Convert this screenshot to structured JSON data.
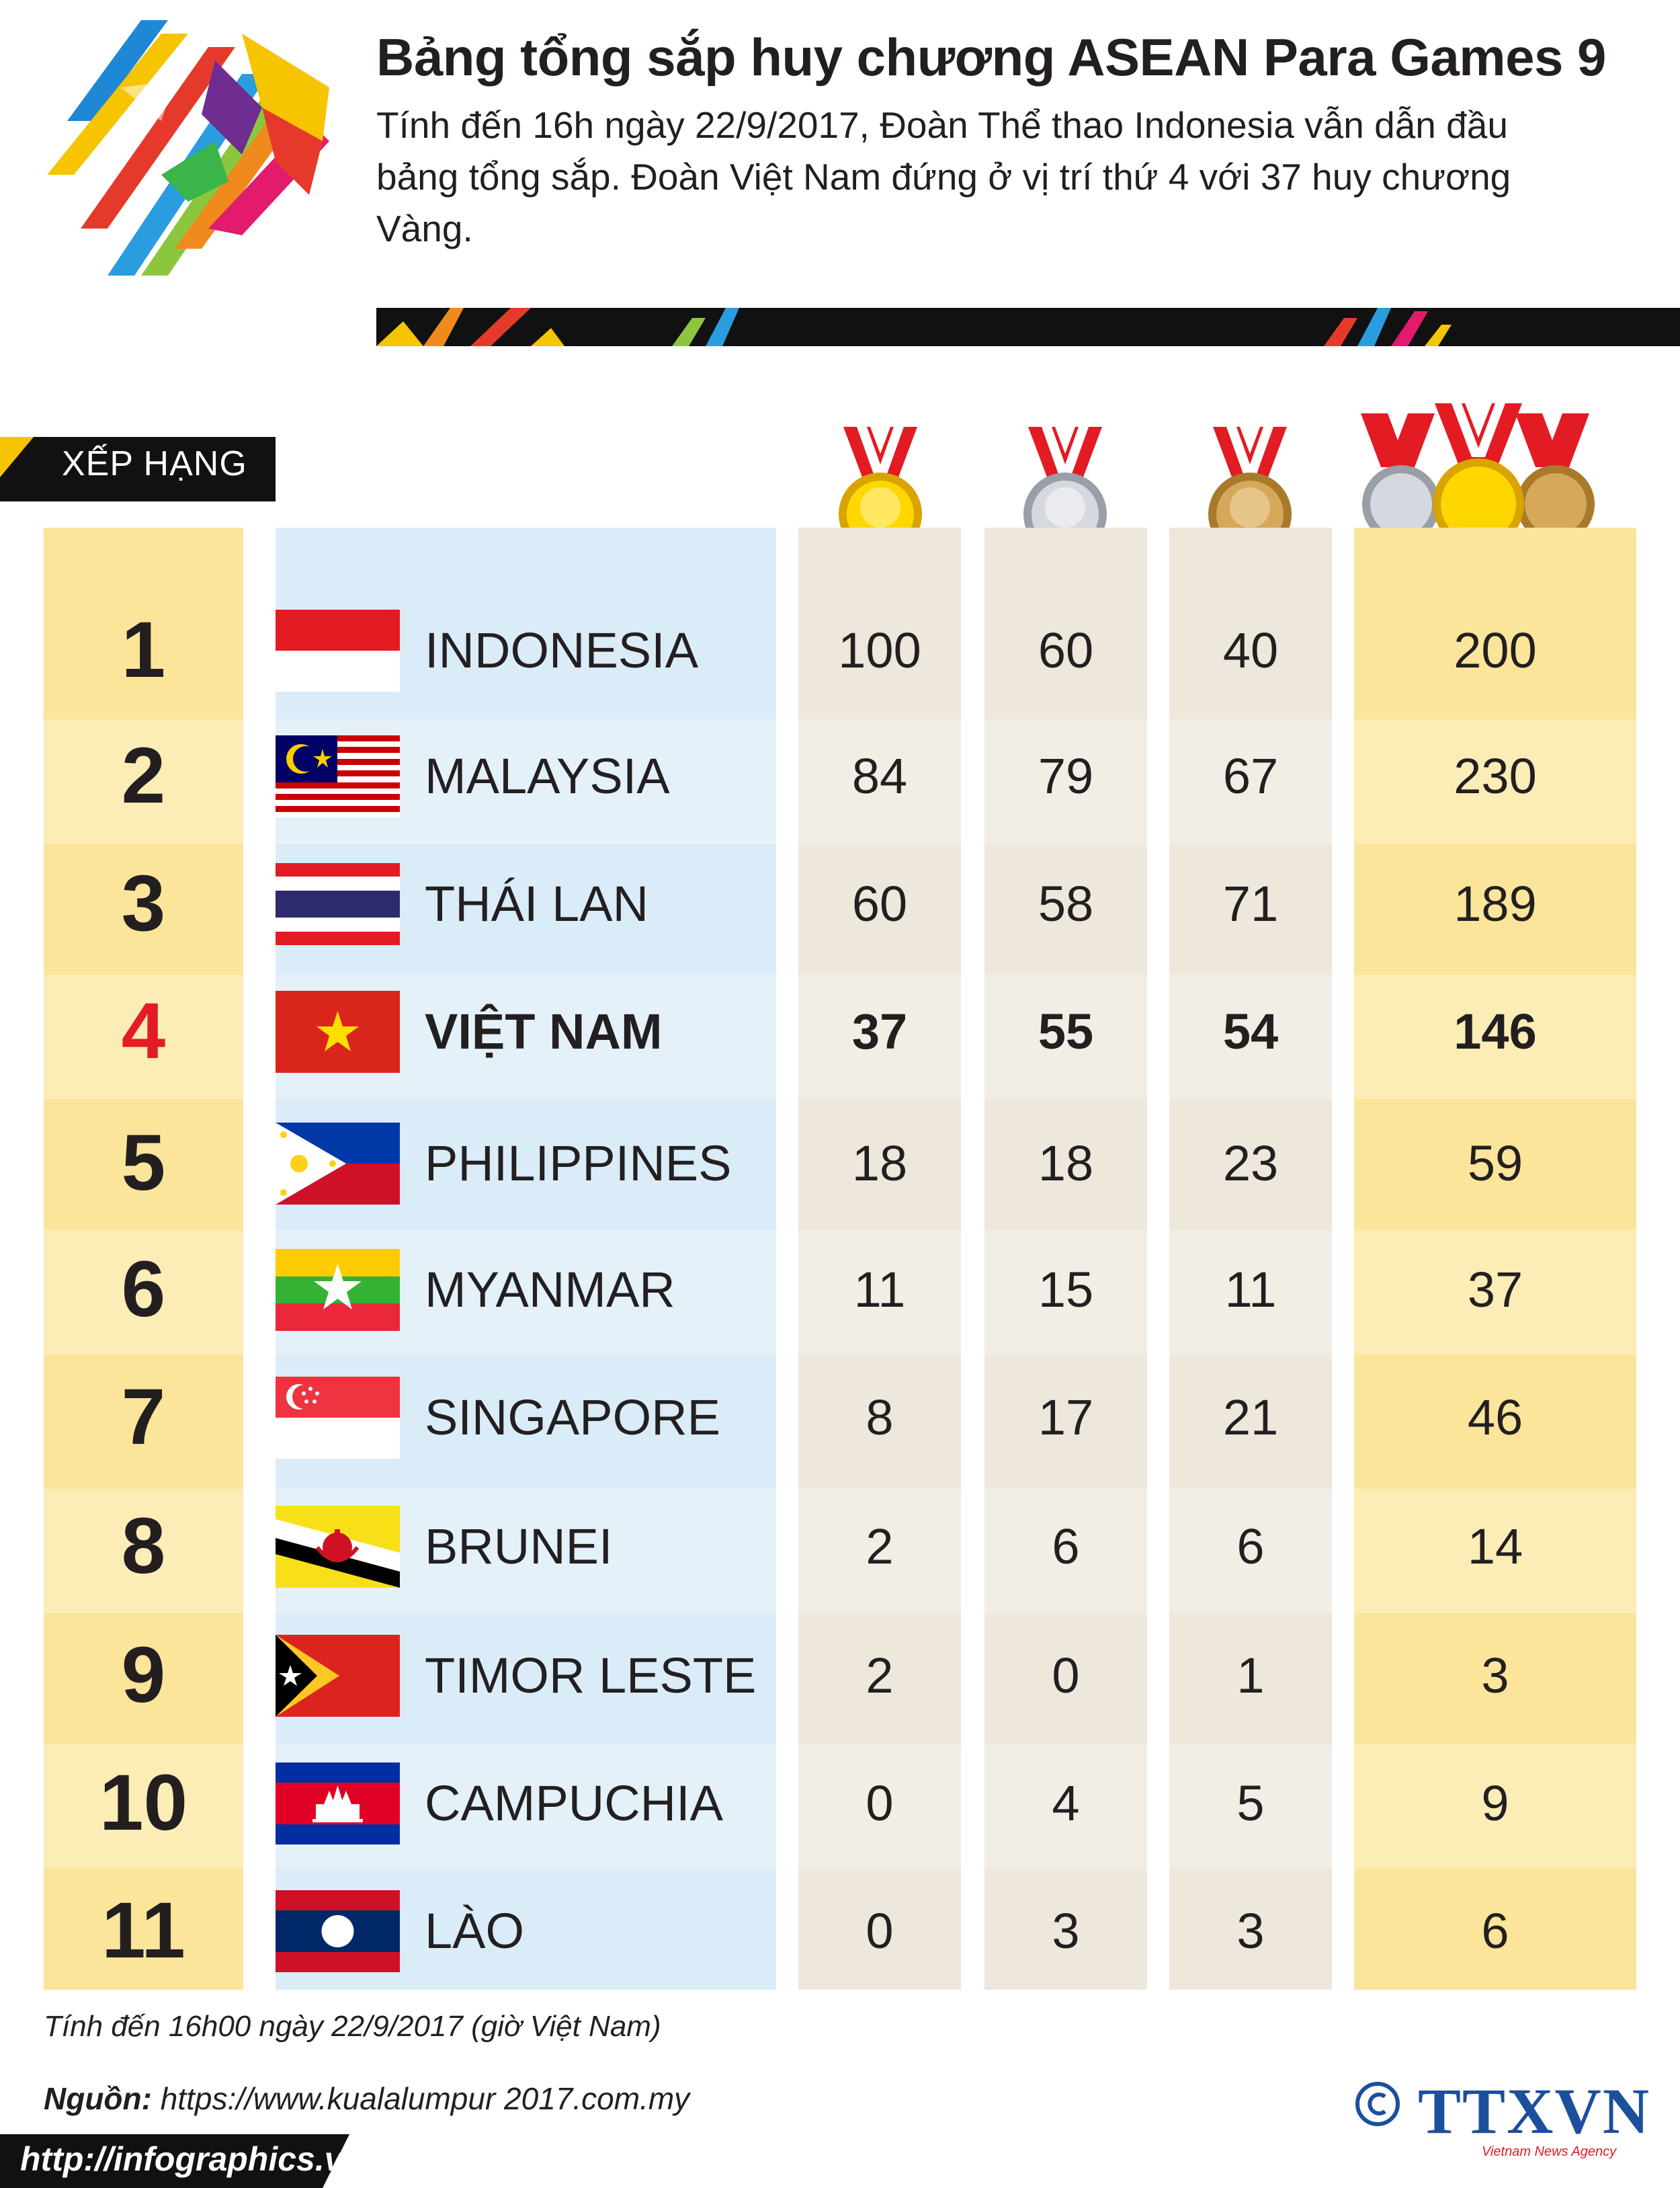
{
  "header": {
    "title": "Bảng tổng sắp huy chương ASEAN Para Games 9",
    "subtitle": "Tính đến 16h ngày 22/9/2017, Đoàn Thể thao Indonesia vẫn dẫn đầu bảng tổng sắp. Đoàn Việt Nam đứng ở vị trí thứ 4 với 37 huy chương Vàng."
  },
  "table": {
    "rank_header": "XẾP HẠNG",
    "medal_icons": [
      "gold-medal-icon",
      "silver-medal-icon",
      "bronze-medal-icon",
      "all-medals-icon"
    ],
    "rows": [
      {
        "rank": "1",
        "country": "INDONESIA",
        "flag": "indonesia-flag-icon",
        "gold": "100",
        "silver": "60",
        "bronze": "40",
        "total": "200"
      },
      {
        "rank": "2",
        "country": "MALAYSIA",
        "flag": "malaysia-flag-icon",
        "gold": "84",
        "silver": "79",
        "bronze": "67",
        "total": "230"
      },
      {
        "rank": "3",
        "country": "THÁI LAN",
        "flag": "thailand-flag-icon",
        "gold": "60",
        "silver": "58",
        "bronze": "71",
        "total": "189"
      },
      {
        "rank": "4",
        "country": "VIỆT NAM",
        "flag": "vietnam-flag-icon",
        "gold": "37",
        "silver": "55",
        "bronze": "54",
        "total": "146"
      },
      {
        "rank": "5",
        "country": "PHILIPPINES",
        "flag": "philippines-flag-icon",
        "gold": "18",
        "silver": "18",
        "bronze": "23",
        "total": "59"
      },
      {
        "rank": "6",
        "country": "MYANMAR",
        "flag": "myanmar-flag-icon",
        "gold": "11",
        "silver": "15",
        "bronze": "11",
        "total": "37"
      },
      {
        "rank": "7",
        "country": "SINGAPORE",
        "flag": "singapore-flag-icon",
        "gold": "8",
        "silver": "17",
        "bronze": "21",
        "total": "46"
      },
      {
        "rank": "8",
        "country": "BRUNEI",
        "flag": "brunei-flag-icon",
        "gold": "2",
        "silver": "6",
        "bronze": "6",
        "total": "14"
      },
      {
        "rank": "9",
        "country": "TIMOR LESTE",
        "flag": "timor-leste-flag-icon",
        "gold": "2",
        "silver": "0",
        "bronze": "1",
        "total": "3"
      },
      {
        "rank": "10",
        "country": "CAMPUCHIA",
        "flag": "cambodia-flag-icon",
        "gold": "0",
        "silver": "4",
        "bronze": "5",
        "total": "9"
      },
      {
        "rank": "11",
        "country": "LÀO",
        "flag": "laos-flag-icon",
        "gold": "0",
        "silver": "3",
        "bronze": "3",
        "total": "6"
      }
    ],
    "highlight_color": "#e31b23"
  },
  "footer": {
    "note": "Tính đến 16h00 ngày 22/9/2017 (giờ Việt Nam)",
    "source_label": "Nguồn:",
    "source_url": "https://www.kualalumpur 2017.com.my",
    "website": "http://infographics.vn",
    "copyright": "©",
    "agency": "TTXVN",
    "agency_sub": "Vietnam News Agency"
  },
  "colors": {
    "gold_column": "#fbe59a",
    "country_column": "#daecf7",
    "medal_column": "#ede7dc",
    "agency_blue": "#1c4f9c"
  }
}
